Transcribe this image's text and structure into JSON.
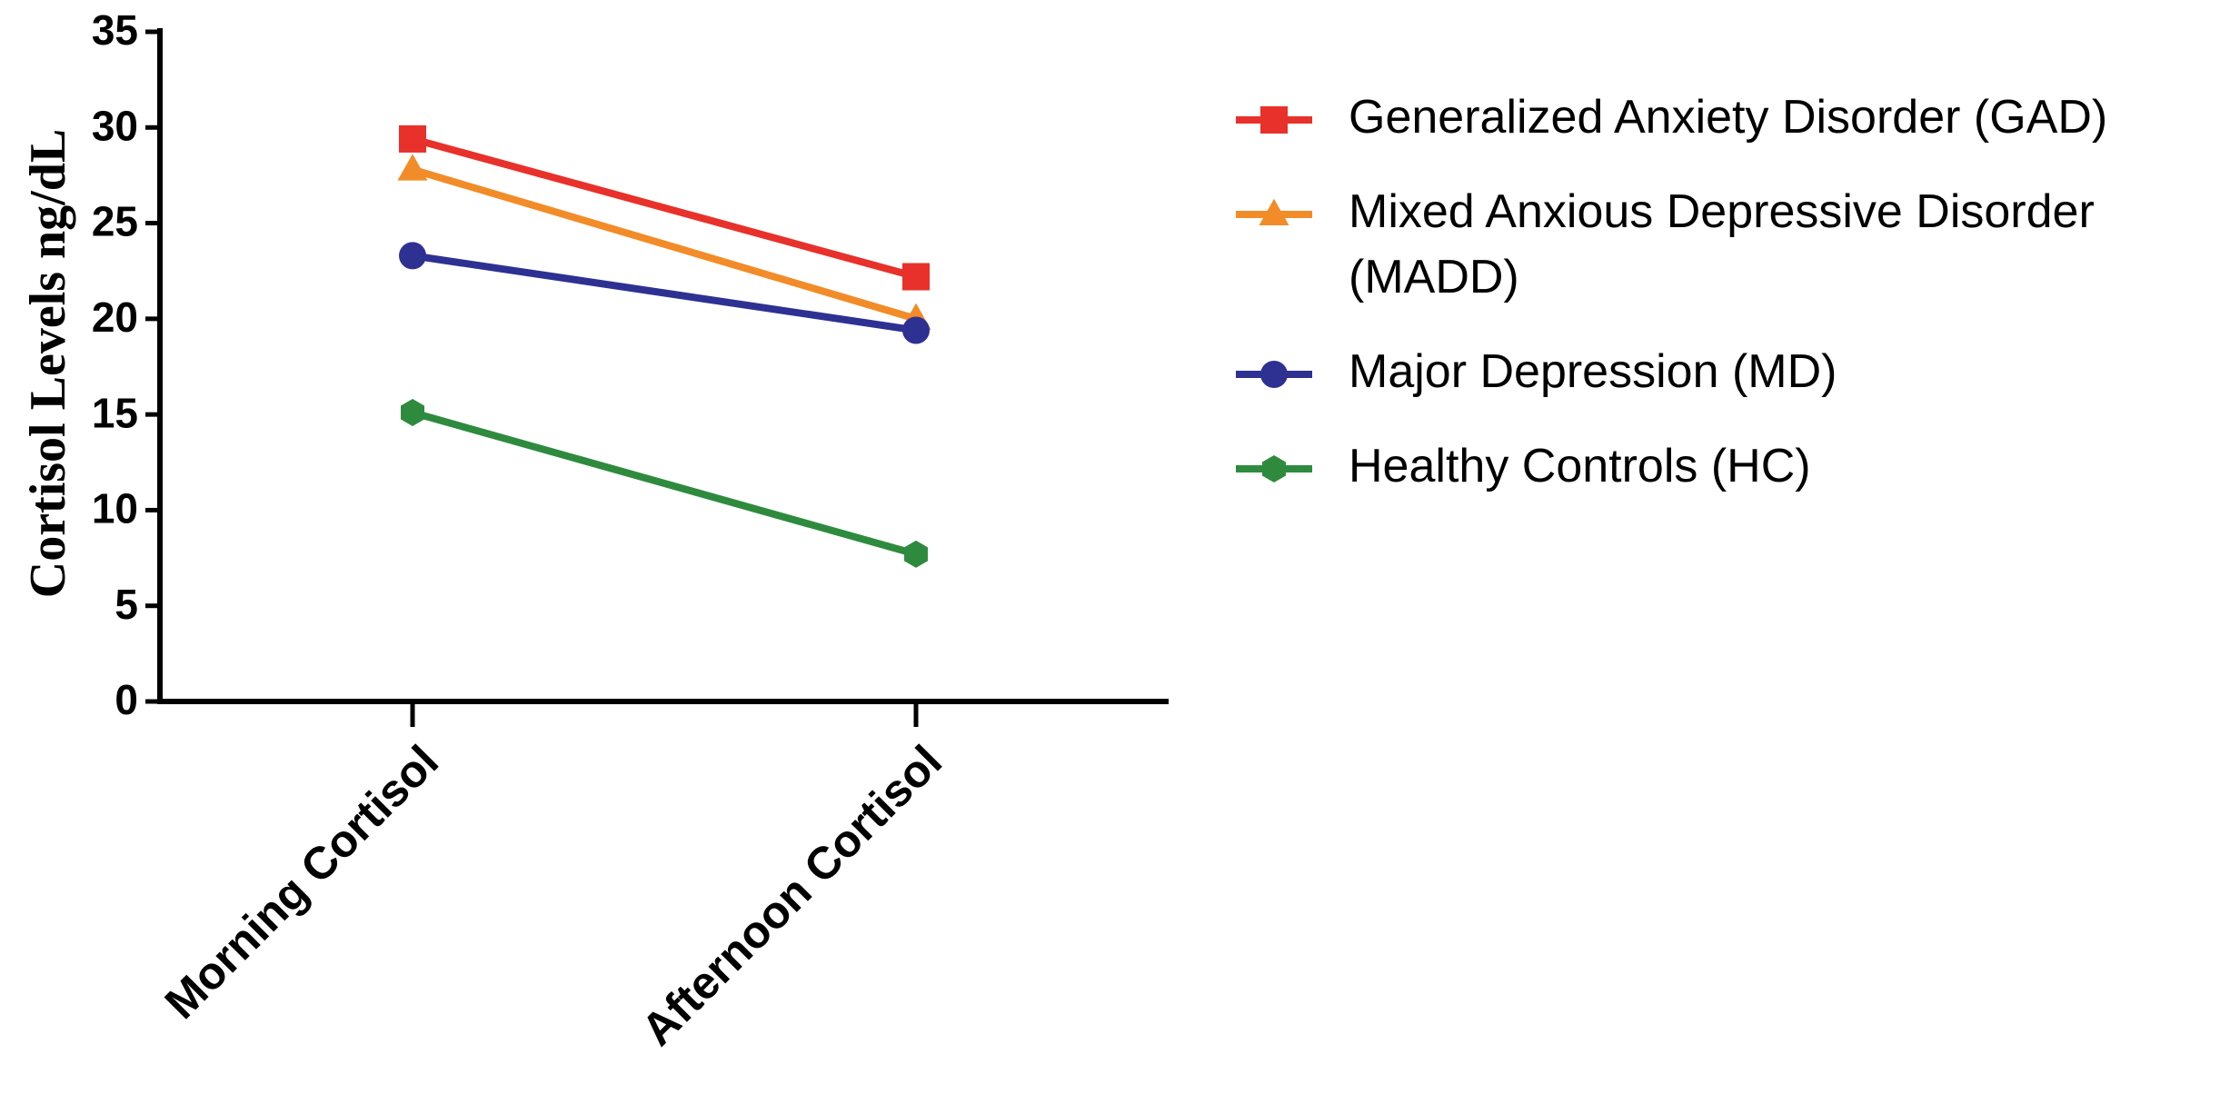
{
  "chart_data": {
    "type": "line",
    "y_label": "Cortisol Levels ng/dL",
    "categories": [
      "Morning Cortisol",
      "Afternoon Cortisol"
    ],
    "series": [
      {
        "name": "Generalized Anxiety Disorder (GAD)",
        "color": "#e8312a",
        "marker": "square",
        "values": [
          29.4,
          22.2
        ]
      },
      {
        "name": "Mixed Anxious Depressive Disorder (MADD)",
        "color": "#f28c28",
        "marker": "triangle",
        "values": [
          27.8,
          20.0
        ]
      },
      {
        "name": "Major Depression (MD)",
        "color": "#2e3192",
        "marker": "circle",
        "values": [
          23.3,
          19.4
        ]
      },
      {
        "name": "Healthy Controls (HC)",
        "color": "#2e8b3e",
        "marker": "hexagon",
        "values": [
          15.1,
          7.7
        ]
      }
    ],
    "ylim": [
      0,
      35
    ],
    "yticks": [
      0,
      5,
      10,
      15,
      20,
      25,
      30,
      35
    ],
    "grid": false,
    "legend": "right"
  }
}
